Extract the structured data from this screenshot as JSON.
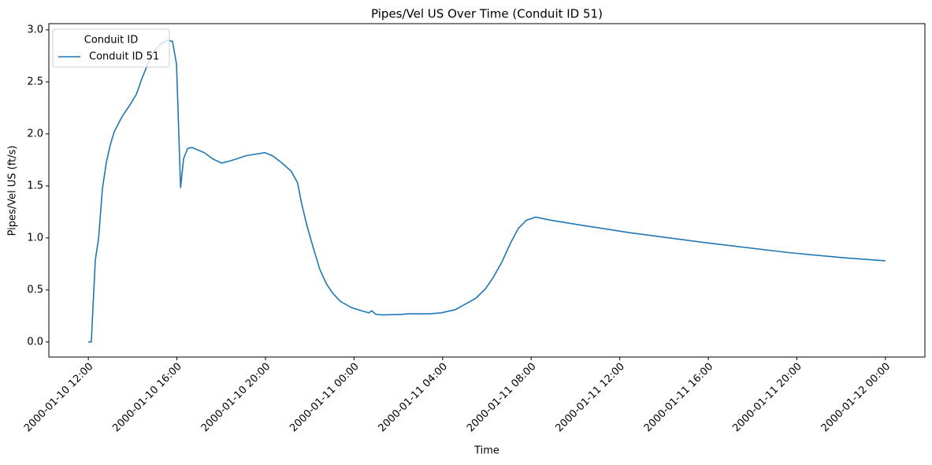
{
  "chart_data": {
    "type": "line",
    "title": "Pipes/Vel US Over Time (Conduit ID 51)",
    "x_label": "Time",
    "y_label": "Pipes/Vel US (ft/s)",
    "legend_title": "Conduit ID",
    "legend": "upper left",
    "x": [
      "2000-01-10 12:00",
      "2000-01-10 12:08",
      "2000-01-10 12:19",
      "2000-01-10 12:28",
      "2000-01-10 12:38",
      "2000-01-10 12:49",
      "2000-01-10 13:00",
      "2000-01-10 13:10",
      "2000-01-10 13:32",
      "2000-01-10 13:53",
      "2000-01-10 14:10",
      "2000-01-10 14:25",
      "2000-01-10 14:42",
      "2000-01-10 14:59",
      "2000-01-10 15:18",
      "2000-01-10 15:33",
      "2000-01-10 15:48",
      "2000-01-10 15:59",
      "2000-01-10 16:10",
      "2000-01-10 16:18",
      "2000-01-10 16:29",
      "2000-01-10 16:40",
      "2000-01-10 17:14",
      "2000-01-10 17:37",
      "2000-01-10 18:01",
      "2000-01-10 18:24",
      "2000-01-10 19:07",
      "2000-01-10 19:58",
      "2000-01-10 20:19",
      "2000-01-10 20:45",
      "2000-01-10 21:10",
      "2000-01-10 21:27",
      "2000-01-10 21:38",
      "2000-01-10 21:53",
      "2000-01-10 22:10",
      "2000-01-10 22:27",
      "2000-01-10 22:45",
      "2000-01-10 23:02",
      "2000-01-10 23:23",
      "2000-01-10 23:53",
      "2000-01-11 00:20",
      "2000-01-11 00:40",
      "2000-01-11 00:48",
      "2000-01-11 00:59",
      "2000-01-11 01:18",
      "2000-01-11 02:09",
      "2000-01-11 02:26",
      "2000-01-11 03:24",
      "2000-01-11 03:56",
      "2000-01-11 04:34",
      "2000-01-11 05:00",
      "2000-01-11 05:30",
      "2000-01-11 05:56",
      "2000-01-11 06:17",
      "2000-01-11 06:41",
      "2000-01-11 07:04",
      "2000-01-11 07:25",
      "2000-01-11 07:47",
      "2000-01-11 08:12",
      "2000-01-11 08:54",
      "2000-01-11 10:20",
      "2000-01-11 12:28",
      "2000-01-11 16:02",
      "2000-01-11 19:35",
      "2000-01-11 22:04",
      "2000-01-12 00:00"
    ],
    "series": [
      {
        "name": "Conduit ID 51",
        "color": "#1f77b4",
        "values": [
          0,
          0,
          0.79,
          1.0,
          1.47,
          1.73,
          1.9,
          2.02,
          2.17,
          2.28,
          2.38,
          2.53,
          2.68,
          2.8,
          2.87,
          2.9,
          2.89,
          2.67,
          1.48,
          1.76,
          1.86,
          1.87,
          1.82,
          1.76,
          1.72,
          1.74,
          1.79,
          1.82,
          1.79,
          1.72,
          1.64,
          1.53,
          1.33,
          1.11,
          0.9,
          0.7,
          0.56,
          0.47,
          0.39,
          0.33,
          0.3,
          0.28,
          0.3,
          0.265,
          0.26,
          0.265,
          0.27,
          0.27,
          0.28,
          0.31,
          0.36,
          0.42,
          0.51,
          0.62,
          0.77,
          0.95,
          1.09,
          1.17,
          1.2,
          1.17,
          1.12,
          1.05,
          0.95,
          0.86,
          0.81,
          0.78
        ]
      }
    ],
    "xlim": [
      "2000-01-10 10:13",
      "2000-01-12 01:47"
    ],
    "xticks": [
      "2000-01-10 12:00",
      "2000-01-10 16:00",
      "2000-01-10 20:00",
      "2000-01-11 00:00",
      "2000-01-11 04:00",
      "2000-01-11 08:00",
      "2000-01-11 12:00",
      "2000-01-11 16:00",
      "2000-01-11 20:00",
      "2000-01-12 00:00"
    ],
    "ylim": [
      -0.145,
      3.06
    ],
    "yticks": [
      {
        "value": 0,
        "label": "0.0"
      },
      0.5,
      {
        "value": 1,
        "label": "1.0"
      },
      1.5,
      {
        "value": 2,
        "label": "2.0"
      },
      2.5,
      {
        "value": 3,
        "label": "3.0"
      }
    ],
    "grid": false
  }
}
